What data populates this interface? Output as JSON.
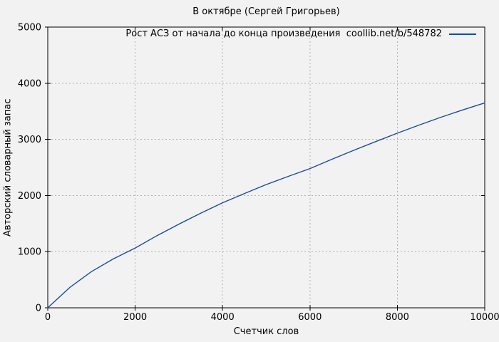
{
  "window": {
    "background_color": "#f2f2f2",
    "text_color": "#000000"
  },
  "chart_data": {
    "type": "line",
    "title": "В октябре (Сергей Григорьев)",
    "legend": "Рост АСЗ от начала до конца произведения  coollib.net/b/548782",
    "legend_position": "top-right-inside",
    "xlabel": "Счетчик слов",
    "ylabel": "Авторский словарный запас",
    "xlim": [
      0,
      10000
    ],
    "ylim": [
      0,
      5000
    ],
    "x_ticks": [
      0,
      2000,
      4000,
      6000,
      8000,
      10000
    ],
    "y_ticks": [
      0,
      1000,
      2000,
      3000,
      4000,
      5000
    ],
    "grid": true,
    "grid_style": "dashed",
    "grid_color": "#b0b0b0",
    "border_color": "#000000",
    "line_color": "#1a4c9c",
    "series": [
      {
        "name": "Рост АСЗ от начала до конца произведения coollib.net/b/548782",
        "x": [
          0,
          500,
          1000,
          1500,
          2000,
          2500,
          3000,
          3500,
          4000,
          4500,
          5000,
          5500,
          6000,
          6500,
          7000,
          7500,
          8000,
          8500,
          9000,
          9500,
          10000
        ],
        "y": [
          0,
          360,
          645,
          870,
          1065,
          1285,
          1490,
          1685,
          1870,
          2035,
          2195,
          2340,
          2480,
          2645,
          2805,
          2960,
          3110,
          3255,
          3395,
          3525,
          3650
        ]
      }
    ]
  }
}
